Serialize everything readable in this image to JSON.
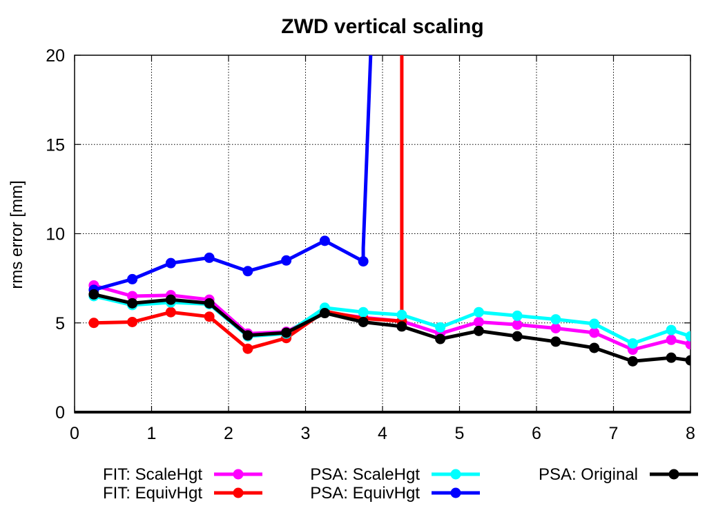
{
  "chart_data": {
    "type": "line",
    "title": "ZWD vertical scaling",
    "xlabel": "",
    "ylabel": "rms error [mm]",
    "xlim": [
      0,
      8
    ],
    "ylim": [
      0,
      20
    ],
    "xticks": [
      "0",
      "1",
      "2",
      "3",
      "4",
      "5",
      "6",
      "7",
      "8"
    ],
    "yticks": [
      "0",
      "5",
      "10",
      "15",
      "20"
    ],
    "grid": true,
    "legend_position": "bottom",
    "series": [
      {
        "name": "FIT: ScaleHgt",
        "color": "#ff00ff",
        "x": [
          0.25,
          0.75,
          1.25,
          1.75,
          2.25,
          2.75,
          3.25,
          3.75,
          4.25,
          4.75,
          5.25,
          5.75,
          6.25,
          6.75,
          7.25,
          7.75,
          8.0
        ],
        "y": [
          7.1,
          6.5,
          6.55,
          6.3,
          4.4,
          4.5,
          5.6,
          5.3,
          5.1,
          4.4,
          5.05,
          4.9,
          4.7,
          4.45,
          3.5,
          4.05,
          3.8
        ]
      },
      {
        "name": "FIT: EquivHgt",
        "color": "#ff0000",
        "x": [
          0.25,
          0.75,
          1.25,
          1.75,
          2.25,
          2.75,
          3.25,
          3.75,
          4.25,
          4.25
        ],
        "y": [
          5.0,
          5.05,
          5.6,
          5.35,
          3.55,
          4.15,
          5.65,
          5.25,
          5.1,
          20.5
        ]
      },
      {
        "name": "PSA: ScaleHgt",
        "color": "#00ffff",
        "x": [
          0.25,
          0.75,
          1.25,
          1.75,
          2.25,
          2.75,
          3.25,
          3.75,
          4.25,
          4.75,
          5.25,
          5.75,
          6.25,
          6.75,
          7.25,
          7.75,
          8.0
        ],
        "y": [
          6.5,
          6.0,
          6.15,
          6.05,
          4.25,
          4.4,
          5.85,
          5.6,
          5.45,
          4.75,
          5.6,
          5.4,
          5.2,
          4.95,
          3.85,
          4.6,
          4.25
        ]
      },
      {
        "name": "PSA: EquivHgt",
        "color": "#0000ff",
        "x": [
          0.25,
          0.75,
          1.25,
          1.75,
          2.25,
          2.75,
          3.25,
          3.75,
          3.75,
          3.85
        ],
        "y": [
          6.85,
          7.45,
          8.35,
          8.65,
          7.9,
          8.5,
          9.6,
          8.45,
          9.2,
          20.5
        ]
      },
      {
        "name": "PSA: Original",
        "color": "#000000",
        "x": [
          0.25,
          0.75,
          1.25,
          1.75,
          2.25,
          2.75,
          3.25,
          3.75,
          4.25,
          4.75,
          5.25,
          5.75,
          6.25,
          6.75,
          7.25,
          7.75,
          8.0
        ],
        "y": [
          6.6,
          6.1,
          6.3,
          6.1,
          4.3,
          4.45,
          5.55,
          5.05,
          4.8,
          4.1,
          4.55,
          4.25,
          3.95,
          3.6,
          2.85,
          3.05,
          2.9
        ]
      }
    ]
  }
}
